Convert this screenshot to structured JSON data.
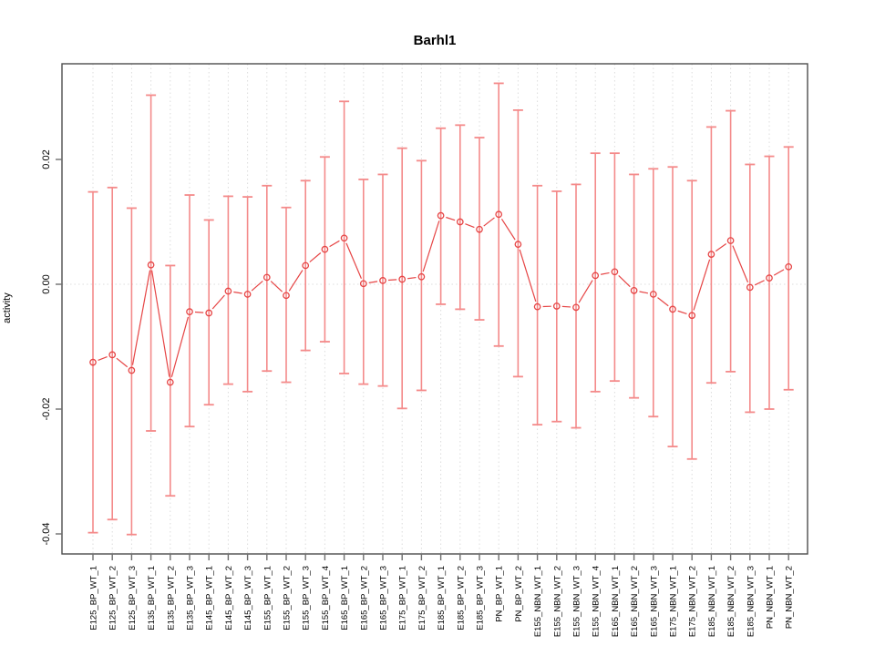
{
  "title": "Barhl1",
  "y_axis": {
    "label": "activity",
    "tick_labels": [
      "0.02",
      "0.00",
      "-0.02",
      "-0.04"
    ],
    "tick_values": [
      0.02,
      0.0,
      -0.02,
      -0.04
    ]
  },
  "chart_data": {
    "type": "scatter",
    "title": "Barhl1",
    "xlabel": "",
    "ylabel": "activity",
    "ylim": [
      -0.0435,
      0.0353
    ],
    "grid": "vertical-dotted-per-category, dotted-zero-line",
    "legend": "none",
    "marker": "open-circle",
    "line_style": "segments-between-points-with-gaps",
    "error_bars": true,
    "categories": [
      "E125_BP_WT_1",
      "E125_BP_WT_2",
      "E125_BP_WT_3",
      "E135_BP_WT_1",
      "E135_BP_WT_2",
      "E135_BP_WT_3",
      "E145_BP_WT_1",
      "E145_BP_WT_2",
      "E145_BP_WT_3",
      "E155_BP_WT_1",
      "E155_BP_WT_2",
      "E155_BP_WT_3",
      "E155_BP_WT_4",
      "E165_BP_WT_1",
      "E165_BP_WT_2",
      "E165_BP_WT_3",
      "E175_BP_WT_1",
      "E175_BP_WT_2",
      "E185_BP_WT_1",
      "E185_BP_WT_2",
      "E185_BP_WT_3",
      "PN_BP_WT_1",
      "PN_BP_WT_2",
      "E155_NBN_WT_1",
      "E155_NBN_WT_2",
      "E155_NBN_WT_3",
      "E155_NBN_WT_4",
      "E165_NBN_WT_1",
      "E165_NBN_WT_2",
      "E165_NBN_WT_3",
      "E175_NBN_WT_1",
      "E175_NBN_WT_2",
      "E185_NBN_WT_1",
      "E185_NBN_WT_2",
      "E185_NBN_WT_3",
      "PN_NBN_WT_1",
      "PN_NBN_WT_2"
    ],
    "series": [
      {
        "name": "activity",
        "values": [
          -0.0125,
          -0.0113,
          -0.0138,
          0.0031,
          -0.0157,
          -0.0044,
          -0.0046,
          -0.0011,
          -0.0016,
          0.0011,
          -0.0018,
          0.003,
          0.0056,
          0.0074,
          0.0001,
          0.0006,
          0.0008,
          0.0012,
          0.011,
          0.01,
          0.0088,
          0.0112,
          0.0064,
          -0.0036,
          -0.0035,
          -0.0037,
          0.0014,
          0.002,
          -0.001,
          -0.0016,
          -0.004,
          -0.005,
          0.0048,
          0.007,
          -0.0005,
          0.001,
          0.0028
        ],
        "error_high": [
          0.0148,
          0.0155,
          0.0122,
          0.0303,
          0.003,
          0.0143,
          0.0103,
          0.0141,
          0.014,
          0.0158,
          0.0123,
          0.0166,
          0.0204,
          0.0293,
          0.0168,
          0.0176,
          0.0218,
          0.0198,
          0.025,
          0.0255,
          0.0235,
          0.0322,
          0.0279,
          0.0158,
          0.0149,
          0.016,
          0.021,
          0.021,
          0.0176,
          0.0185,
          0.0188,
          0.0166,
          0.0252,
          0.0278,
          0.0192,
          0.0205,
          0.022
        ],
        "error_low": [
          -0.0398,
          -0.0377,
          -0.0401,
          -0.0235,
          -0.0339,
          -0.0228,
          -0.0193,
          -0.016,
          -0.0172,
          -0.0139,
          -0.0157,
          -0.0106,
          -0.0092,
          -0.0143,
          -0.016,
          -0.0163,
          -0.0199,
          -0.017,
          -0.0032,
          -0.004,
          -0.0057,
          -0.0099,
          -0.0148,
          -0.0225,
          -0.022,
          -0.023,
          -0.0172,
          -0.0155,
          -0.0182,
          -0.0212,
          -0.026,
          -0.028,
          -0.0158,
          -0.014,
          -0.0205,
          -0.02,
          -0.0169
        ]
      }
    ],
    "colors": {
      "error_bar": "#f48a8a",
      "point_line": "#e64545",
      "grid": "#dcdcdc",
      "axis_box": "#4d4d4d",
      "tick": "#6e6e6e",
      "text": "#000000"
    }
  }
}
